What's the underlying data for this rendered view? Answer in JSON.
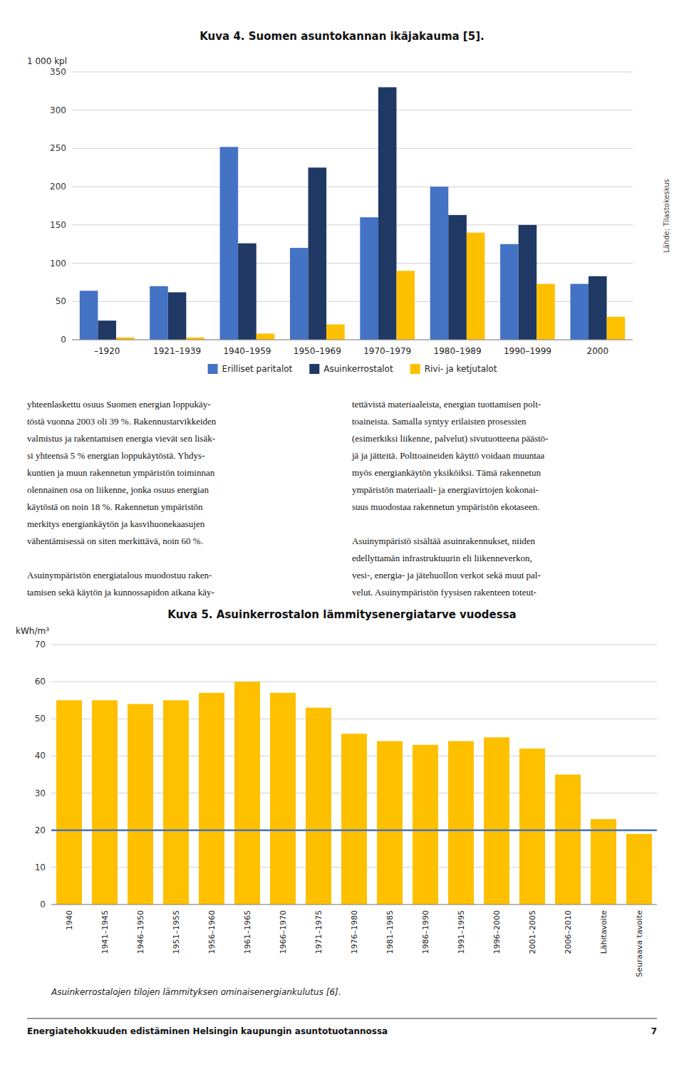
{
  "chart_data": [
    {
      "type": "bar",
      "title": "Kuva 4. Suomen asuntokannan ikäjakauma [5].",
      "ylabel": "1 000 kpl",
      "categories": [
        "–1920",
        "1921–1939",
        "1940–1959",
        "1950–1969",
        "1970–1979",
        "1980–1989",
        "1990–1999",
        "2000"
      ],
      "series": [
        {
          "name": "Erilliset paritalot",
          "color": "#4472C4",
          "values": [
            64,
            70,
            252,
            120,
            160,
            200,
            125,
            73
          ]
        },
        {
          "name": "Asuinkerrostalot",
          "color": "#1F3864",
          "values": [
            25,
            62,
            126,
            225,
            330,
            163,
            150,
            83
          ]
        },
        {
          "name": "Rivi- ja ketjutalot",
          "color": "#FFC000",
          "values": [
            3,
            3,
            8,
            20,
            90,
            140,
            73,
            30
          ]
        }
      ],
      "ylim": [
        0,
        350
      ],
      "yticks": [
        0,
        50,
        100,
        150,
        200,
        250,
        300,
        350
      ],
      "grid": true,
      "legend": "bottom",
      "annotations": [
        "Lähde: Tilastokeskus"
      ]
    },
    {
      "type": "bar",
      "title": "Kuva 5. Asuinkerrostalon lämmitysenergiatarve vuodessa",
      "ylabel": "kWh/m³",
      "categories": [
        "1940",
        "1941–1945",
        "1946–1950",
        "1951–1955",
        "1956–1960",
        "1961–1965",
        "1966–1970",
        "1971–1975",
        "1976–1980",
        "1981–1985",
        "1986–1990",
        "1991–1995",
        "1996–2000",
        "2001–2005",
        "2006–2010",
        "Lähitavoite",
        "Seuraava tavoite"
      ],
      "values": [
        55,
        55,
        54,
        55,
        57,
        60,
        57,
        53,
        46,
        44,
        43,
        44,
        45,
        42,
        35,
        23,
        19
      ],
      "color": "#FFC000",
      "reference_line": {
        "value": 20,
        "color": "#4472C4"
      },
      "ylim": [
        0,
        70
      ],
      "yticks": [
        0,
        10,
        20,
        30,
        40,
        50,
        60,
        70
      ],
      "grid": true,
      "annotations": [
        "Asuinkerrostalojen tilojen lämmityksen ominaisenergiankulutus [6]."
      ]
    }
  ],
  "text_left": [
    [
      "yhteenlaskettu osuus Suomen energian loppukäy-",
      "töstä vuonna 2003 oli 39 %. Rakennustarvikkeiden",
      "valmistus ja rakentamisen energia vievät sen lisäk-",
      "si yhteensä 5 % energian loppukäytöstä. Yhdys-",
      "kuntien ja muun rakennetun ympäristön toiminnan",
      "olennainen osa on liikenne, jonka osuus energian",
      "käytöstä on noin 18 %. Rakennetun ympäristön",
      "merkitys energiankäytön ja kasvihuonekaasujen",
      "vähentämisessä on siten merkittävä, noin 60 %."
    ],
    [
      "Asuinympäristön energiatalous muodostuu raken-",
      "tamisen sekä käytön ja kunnossapidon aikana käy-"
    ]
  ],
  "text_right": [
    [
      "tettävistä materiaaleista, energian tuottamisen polt-",
      "toaineista. Samalla syntyy erilaisten prosessien",
      "(esimerkiksi liikenne, palvelut) sivutuotteena päästö-",
      "jä ja jätteitä. Polttoaineiden käyttö voidaan muuntaa",
      "myös energiankäytön yksiköiksi. Tämä rakennetun",
      "ympäristön materiaali- ja energiavirtojen kokonai-",
      "suus muodostaa rakennetun ympäristön ekotaseen."
    ],
    [
      "Asuinympäristö sisältää asuinrakennukset, niiden",
      "edellyttamän infrastruktuurin eli liikenneverkon,",
      "vesi-, energia- ja jätehuollon verkot sekä muut pal-",
      "velut. Asuinympäristön fyysisen rakenteen toteut-"
    ]
  ],
  "footer": "Energiatehokkuuden edistäminen Helsingin kaupungin asuntotuotannossa",
  "footer_page": "7"
}
